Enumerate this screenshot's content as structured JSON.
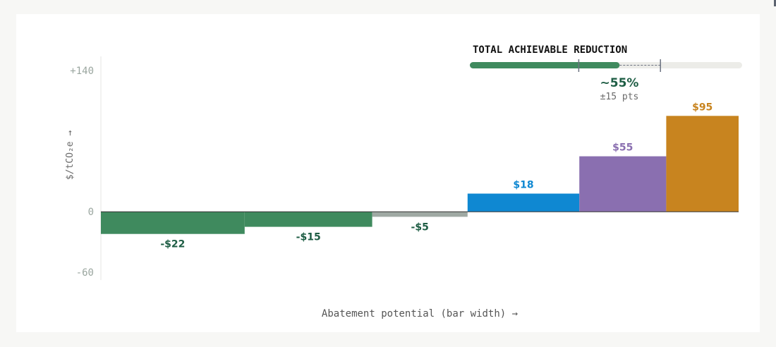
{
  "chart_data": {
    "type": "bar",
    "variant": "marginal-abatement-cost-curve",
    "xlabel": "Abatement potential (bar width) →",
    "ylabel": "$/tCO₂e →",
    "ylim": [
      -60,
      140
    ],
    "y_ticks": [
      {
        "value": 140,
        "label": "+140"
      },
      {
        "value": 0,
        "label": "0"
      },
      {
        "value": -60,
        "label": "-60"
      }
    ],
    "bars": [
      {
        "value": -22,
        "label": "-$22",
        "width_share": 0.2254,
        "color": "#3f8a5e",
        "label_color": "#1f5e45"
      },
      {
        "value": -15,
        "label": "-$15",
        "width_share": 0.2,
        "color": "#3f8a5e",
        "label_color": "#1f5e45"
      },
      {
        "value": -5,
        "label": "-$5",
        "width_share": 0.1496,
        "color": "#9fa9a3",
        "label_color": "#1f5e45"
      },
      {
        "value": 18,
        "label": "$18",
        "width_share": 0.1752,
        "color": "#0f88d2",
        "label_color": "#0f88d2"
      },
      {
        "value": 55,
        "label": "$55",
        "width_share": 0.1363,
        "color": "#8a6fb0",
        "label_color": "#8a6fb0"
      },
      {
        "value": 95,
        "label": "$95",
        "width_share": 0.1135,
        "color": "#c8841f",
        "label_color": "#c8841f"
      }
    ],
    "grid": false
  },
  "reduction": {
    "title": "TOTAL ACHIEVABLE REDUCTION",
    "value_pct": 55,
    "value_label": "~55%",
    "uncertainty_label": "±15 pts",
    "range_low_pct": 40,
    "range_high_pct": 70
  },
  "colors": {
    "axis_text": "#9aa69f",
    "axis_line": "#e4e6e3",
    "track": "#ecece8",
    "progress": "#3f8a5e",
    "marker": "#6b7280",
    "title": "#111111",
    "value": "#1f5e45",
    "muted": "#6b6b6b"
  }
}
